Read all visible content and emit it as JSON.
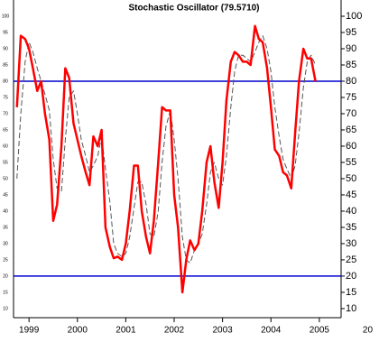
{
  "chart_data": {
    "type": "line",
    "title": "Stochastic Oscillator (79.5710)",
    "x": [
      1998.75,
      1998.83,
      1998.92,
      1999.0,
      1999.08,
      1999.17,
      1999.25,
      1999.33,
      1999.42,
      1999.5,
      1999.58,
      1999.67,
      1999.75,
      1999.83,
      1999.92,
      2000.0,
      2000.08,
      2000.17,
      2000.25,
      2000.33,
      2000.42,
      2000.5,
      2000.58,
      2000.67,
      2000.75,
      2000.83,
      2000.92,
      2001.0,
      2001.08,
      2001.17,
      2001.25,
      2001.33,
      2001.42,
      2001.5,
      2001.58,
      2001.67,
      2001.75,
      2001.83,
      2001.92,
      2002.0,
      2002.08,
      2002.17,
      2002.25,
      2002.33,
      2002.42,
      2002.5,
      2002.58,
      2002.67,
      2002.75,
      2002.83,
      2002.92,
      2003.0,
      2003.08,
      2003.17,
      2003.25,
      2003.33,
      2003.42,
      2003.5,
      2003.58,
      2003.67,
      2003.75,
      2003.83,
      2003.92,
      2004.0,
      2004.08,
      2004.17,
      2004.25,
      2004.33,
      2004.42,
      2004.5,
      2004.58,
      2004.67,
      2004.75,
      2004.83,
      2004.92
    ],
    "series": [
      {
        "color": "#ff0000",
        "style": "solid",
        "values": [
          72,
          94,
          93,
          90,
          84,
          77,
          80,
          70,
          62,
          37,
          42,
          60,
          84,
          81,
          67,
          62,
          57,
          52,
          48,
          63,
          60,
          65,
          35,
          29,
          25.5,
          26,
          25,
          30,
          40,
          54,
          54,
          40,
          32,
          27,
          37,
          55,
          72,
          71,
          71,
          45,
          35,
          15,
          25,
          31,
          28,
          30,
          40,
          55,
          60,
          49,
          41,
          55,
          74,
          86,
          89,
          88,
          86,
          86,
          85,
          97,
          93,
          92,
          84,
          72,
          59,
          57,
          52,
          51,
          47,
          64,
          80,
          90,
          87,
          87,
          80
        ]
      },
      {
        "color": "#555555",
        "style": "dashed",
        "values": [
          50,
          70,
          86,
          92,
          89,
          84,
          80,
          76,
          71,
          56,
          47,
          46,
          62,
          75,
          77,
          70,
          62,
          57,
          52,
          54,
          57,
          63,
          53,
          43,
          30,
          27,
          26,
          27,
          32,
          41,
          49,
          49,
          42,
          33,
          32,
          40,
          55,
          66,
          71,
          62,
          50,
          32,
          25,
          24,
          28,
          30,
          33,
          42,
          52,
          55,
          50,
          48,
          57,
          72,
          83,
          88,
          88,
          87,
          86,
          89,
          92,
          94,
          90,
          83,
          72,
          63,
          56,
          53,
          50,
          54,
          64,
          78,
          86,
          88,
          85
        ]
      }
    ],
    "hlines": [
      80,
      20
    ],
    "hline_color": "#0000cc",
    "xlim": [
      1998.68,
      2005.45
    ],
    "xticks": [
      1999,
      2000,
      2001,
      2002,
      2003,
      2004,
      2005,
      {
        "value": 2006,
        "label": "20"
      }
    ],
    "ylim": [
      7.2,
      105
    ],
    "yticks": [
      10,
      15,
      20,
      25,
      30,
      35,
      40,
      45,
      50,
      55,
      60,
      65,
      70,
      75,
      80,
      85,
      90,
      95,
      100
    ]
  }
}
